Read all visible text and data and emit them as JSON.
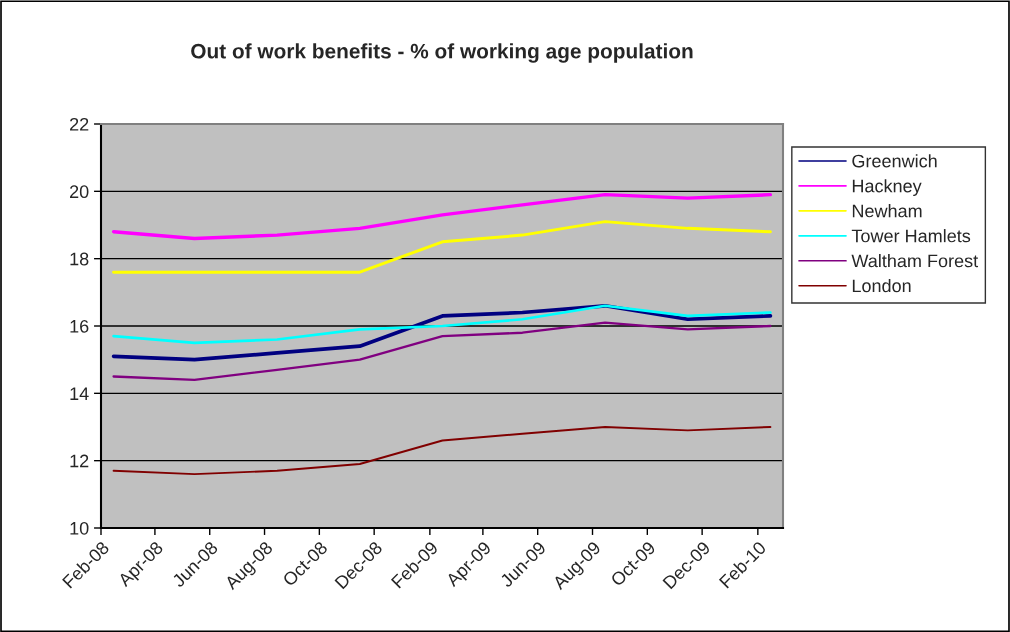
{
  "chart_data": {
    "type": "line",
    "title": "Out of work benefits - % of working age population",
    "x": [
      "2008-02-15",
      "2008-05-15",
      "2008-08-15",
      "2008-11-15",
      "2009-02-15",
      "2009-05-15",
      "2009-08-15",
      "2009-11-15",
      "2010-02-15"
    ],
    "series": [
      {
        "name": "Greenwich",
        "color": "#000080",
        "values": [
          15.1,
          15.0,
          15.2,
          15.4,
          16.3,
          16.4,
          16.6,
          16.2,
          16.3
        ]
      },
      {
        "name": "Hackney",
        "color": "#ff00ff",
        "values": [
          18.8,
          18.6,
          18.7,
          18.9,
          19.3,
          19.6,
          19.9,
          19.8,
          19.9
        ]
      },
      {
        "name": "Newham",
        "color": "#ffff00",
        "values": [
          17.6,
          17.6,
          17.6,
          17.6,
          18.5,
          18.7,
          19.1,
          18.9,
          18.8
        ]
      },
      {
        "name": "Tower Hamlets",
        "color": "#00ffff",
        "values": [
          15.7,
          15.5,
          15.6,
          15.9,
          16.0,
          16.2,
          16.6,
          16.3,
          16.4
        ]
      },
      {
        "name": "Waltham Forest",
        "color": "#800080",
        "values": [
          14.5,
          14.4,
          14.7,
          15.0,
          15.7,
          15.8,
          16.1,
          15.9,
          16.0
        ]
      },
      {
        "name": "London",
        "color": "#800000",
        "values": [
          11.7,
          11.6,
          11.7,
          11.9,
          12.6,
          12.8,
          13.0,
          12.9,
          13.0
        ]
      }
    ],
    "xlim": [
      "2008-02-01",
      "2010-03-01"
    ],
    "xticks": [
      {
        "value": "2008-02",
        "label": "Feb-08"
      },
      {
        "value": "2008-04",
        "label": "Apr-08"
      },
      {
        "value": "2008-06",
        "label": "Jun-08"
      },
      {
        "value": "2008-08",
        "label": "Aug-08"
      },
      {
        "value": "2008-10",
        "label": "Oct-08"
      },
      {
        "value": "2008-12",
        "label": "Dec-08"
      },
      {
        "value": "2009-02",
        "label": "Feb-09"
      },
      {
        "value": "2009-04",
        "label": "Apr-09"
      },
      {
        "value": "2009-06",
        "label": "Jun-09"
      },
      {
        "value": "2009-08",
        "label": "Aug-09"
      },
      {
        "value": "2009-10",
        "label": "Oct-09"
      },
      {
        "value": "2009-12",
        "label": "Dec-09"
      },
      {
        "value": "2010-02",
        "label": "Feb-10"
      }
    ],
    "ylim": [
      10,
      22
    ],
    "yticks": [
      10,
      12,
      14,
      16,
      18,
      20,
      22
    ],
    "grid": "y",
    "legend": "right",
    "marker": "none",
    "line_style": "solid"
  }
}
